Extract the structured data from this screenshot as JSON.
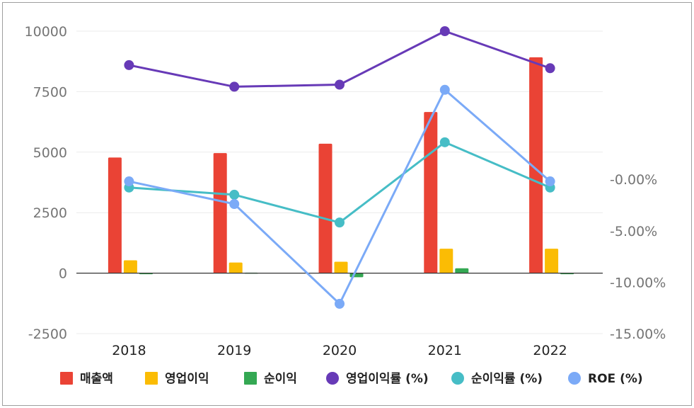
{
  "chart_data": {
    "type": "bar+line",
    "categories": [
      "2018",
      "2019",
      "2020",
      "2021",
      "2022"
    ],
    "left_axis": {
      "ticks": [
        10000,
        7500,
        5000,
        2500,
        0,
        -2500
      ],
      "tick_labels": [
        "10000",
        "7500",
        "5000",
        "2500",
        "0",
        "-2500"
      ],
      "range": [
        -2500,
        10000
      ]
    },
    "right_axis": {
      "ticks": [
        0,
        -5,
        -10,
        -15
      ],
      "tick_labels": [
        "-0.00%",
        "-5.00%",
        "-10.00%",
        "-15.00%"
      ],
      "range": [
        -15,
        14.4
      ]
    },
    "bar_series": [
      {
        "name": "매출액",
        "color": "#ea4335",
        "values": [
          4780,
          4960,
          5350,
          6660,
          8920
        ]
      },
      {
        "name": "영업이익",
        "color": "#fbbc04",
        "values": [
          530,
          440,
          470,
          1010,
          1010
        ]
      },
      {
        "name": "순이익",
        "color": "#34a853",
        "values": [
          -10,
          20,
          -170,
          200,
          -20
        ]
      }
    ],
    "line_series": [
      {
        "name": "영업이익률 (%)",
        "color": "#673ab7",
        "values": [
          11.1,
          9.0,
          9.2,
          14.4,
          10.8
        ]
      },
      {
        "name": "순이익률 (%)",
        "color": "#46bdc6",
        "values": [
          -0.8,
          -1.5,
          -4.2,
          3.6,
          -0.8
        ]
      },
      {
        "name": "ROE (%)",
        "color": "#7baaf7",
        "values": [
          -0.2,
          -2.4,
          -12.1,
          8.7,
          -0.2
        ]
      }
    ],
    "legend_position": "bottom",
    "grid": true
  },
  "legend": [
    {
      "label": "매출액",
      "shape": "square",
      "color": "#ea4335"
    },
    {
      "label": "영업이익",
      "shape": "square",
      "color": "#fbbc04"
    },
    {
      "label": "순이익",
      "shape": "square",
      "color": "#34a853"
    },
    {
      "label": "영업이익률 (%)",
      "shape": "circle",
      "color": "#673ab7"
    },
    {
      "label": "순이익률 (%)",
      "shape": "circle",
      "color": "#46bdc6"
    },
    {
      "label": "ROE (%)",
      "shape": "circle",
      "color": "#7baaf7"
    }
  ]
}
